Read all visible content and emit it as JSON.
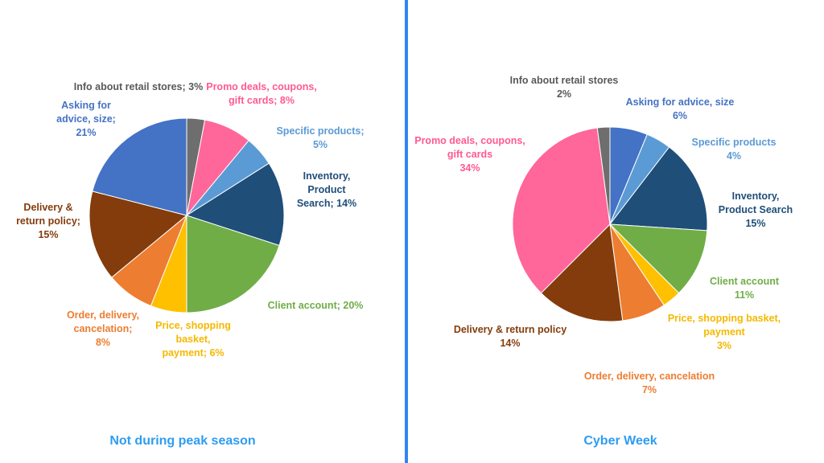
{
  "divider_color": "#2e86f5",
  "chart_data": [
    {
      "type": "pie",
      "title": "Not during peak season",
      "title_color": "#2e9cf2",
      "unit": "%",
      "slices": [
        {
          "category": "Info about retail stores",
          "value": 3,
          "color": "#6e6e6e",
          "label_lines": [
            "Info about retail stores; 3%"
          ],
          "label_color": "#595959"
        },
        {
          "category": "Promo deals, coupons, gift cards",
          "value": 8,
          "color": "#ff6699",
          "label_lines": [
            "Promo deals, coupons,",
            "gift cards; 8%"
          ],
          "label_color": "#ff5a8f"
        },
        {
          "category": "Specific products",
          "value": 5,
          "color": "#5b9bd5",
          "label_lines": [
            "Specific products;",
            "5%"
          ],
          "label_color": "#5b9bd5"
        },
        {
          "category": "Inventory, Product Search",
          "value": 14,
          "color": "#1f4e79",
          "label_lines": [
            "Inventory,",
            "Product",
            "Search; 14%"
          ],
          "label_color": "#1f4e79"
        },
        {
          "category": "Client account",
          "value": 20,
          "color": "#70ad47",
          "label_lines": [
            "Client account; 20%"
          ],
          "label_color": "#70ad47"
        },
        {
          "category": "Price, shopping basket, payment",
          "value": 6,
          "color": "#ffc000",
          "label_lines": [
            "Price, shopping",
            "basket,",
            "payment; 6%"
          ],
          "label_color": "#f5b800"
        },
        {
          "category": "Order, delivery, cancelation",
          "value": 8,
          "color": "#ed7d31",
          "label_lines": [
            "Order, delivery,",
            "cancelation;",
            "8%"
          ],
          "label_color": "#ed7d31"
        },
        {
          "category": "Delivery & return policy",
          "value": 15,
          "color": "#843c0c",
          "label_lines": [
            "Delivery &",
            "return policy;",
            "15%"
          ],
          "label_color": "#843c0c"
        },
        {
          "category": "Asking for advice, size",
          "value": 21,
          "color": "#4472c4",
          "label_lines": [
            "Asking for",
            "advice, size;",
            "21%"
          ],
          "label_color": "#4472c4"
        }
      ]
    },
    {
      "type": "pie",
      "title": "Cyber Week",
      "title_color": "#2e9cf2",
      "unit": "%",
      "slices": [
        {
          "category": "Asking for advice, size",
          "value": 6,
          "color": "#4472c4",
          "label_lines": [
            "Asking for advice, size",
            "6%"
          ],
          "label_color": "#4472c4"
        },
        {
          "category": "Specific products",
          "value": 4,
          "color": "#5b9bd5",
          "label_lines": [
            "Specific products",
            "4%"
          ],
          "label_color": "#5b9bd5"
        },
        {
          "category": "Inventory, Product Search",
          "value": 15,
          "color": "#1f4e79",
          "label_lines": [
            "Inventory,",
            "Product Search",
            "15%"
          ],
          "label_color": "#1f4e79"
        },
        {
          "category": "Client account",
          "value": 11,
          "color": "#70ad47",
          "label_lines": [
            "Client account",
            "11%"
          ],
          "label_color": "#70ad47"
        },
        {
          "category": "Price, shopping basket, payment",
          "value": 3,
          "color": "#ffc000",
          "label_lines": [
            "Price, shopping basket,",
            "payment",
            "3%"
          ],
          "label_color": "#f5b800"
        },
        {
          "category": "Order, delivery, cancelation",
          "value": 7,
          "color": "#ed7d31",
          "label_lines": [
            "Order, delivery, cancelation",
            "7%"
          ],
          "label_color": "#ed7d31"
        },
        {
          "category": "Delivery & return policy",
          "value": 14,
          "color": "#843c0c",
          "label_lines": [
            "Delivery & return policy",
            "14%"
          ],
          "label_color": "#843c0c"
        },
        {
          "category": "Promo deals, coupons, gift cards",
          "value": 34,
          "color": "#ff6699",
          "label_lines": [
            "Promo deals, coupons,",
            "gift cards",
            "34%"
          ],
          "label_color": "#ff5a8f"
        },
        {
          "category": "Info about retail stores",
          "value": 2,
          "color": "#6e6e6e",
          "label_lines": [
            "Info about retail stores",
            "2%"
          ],
          "label_color": "#595959"
        }
      ]
    }
  ]
}
